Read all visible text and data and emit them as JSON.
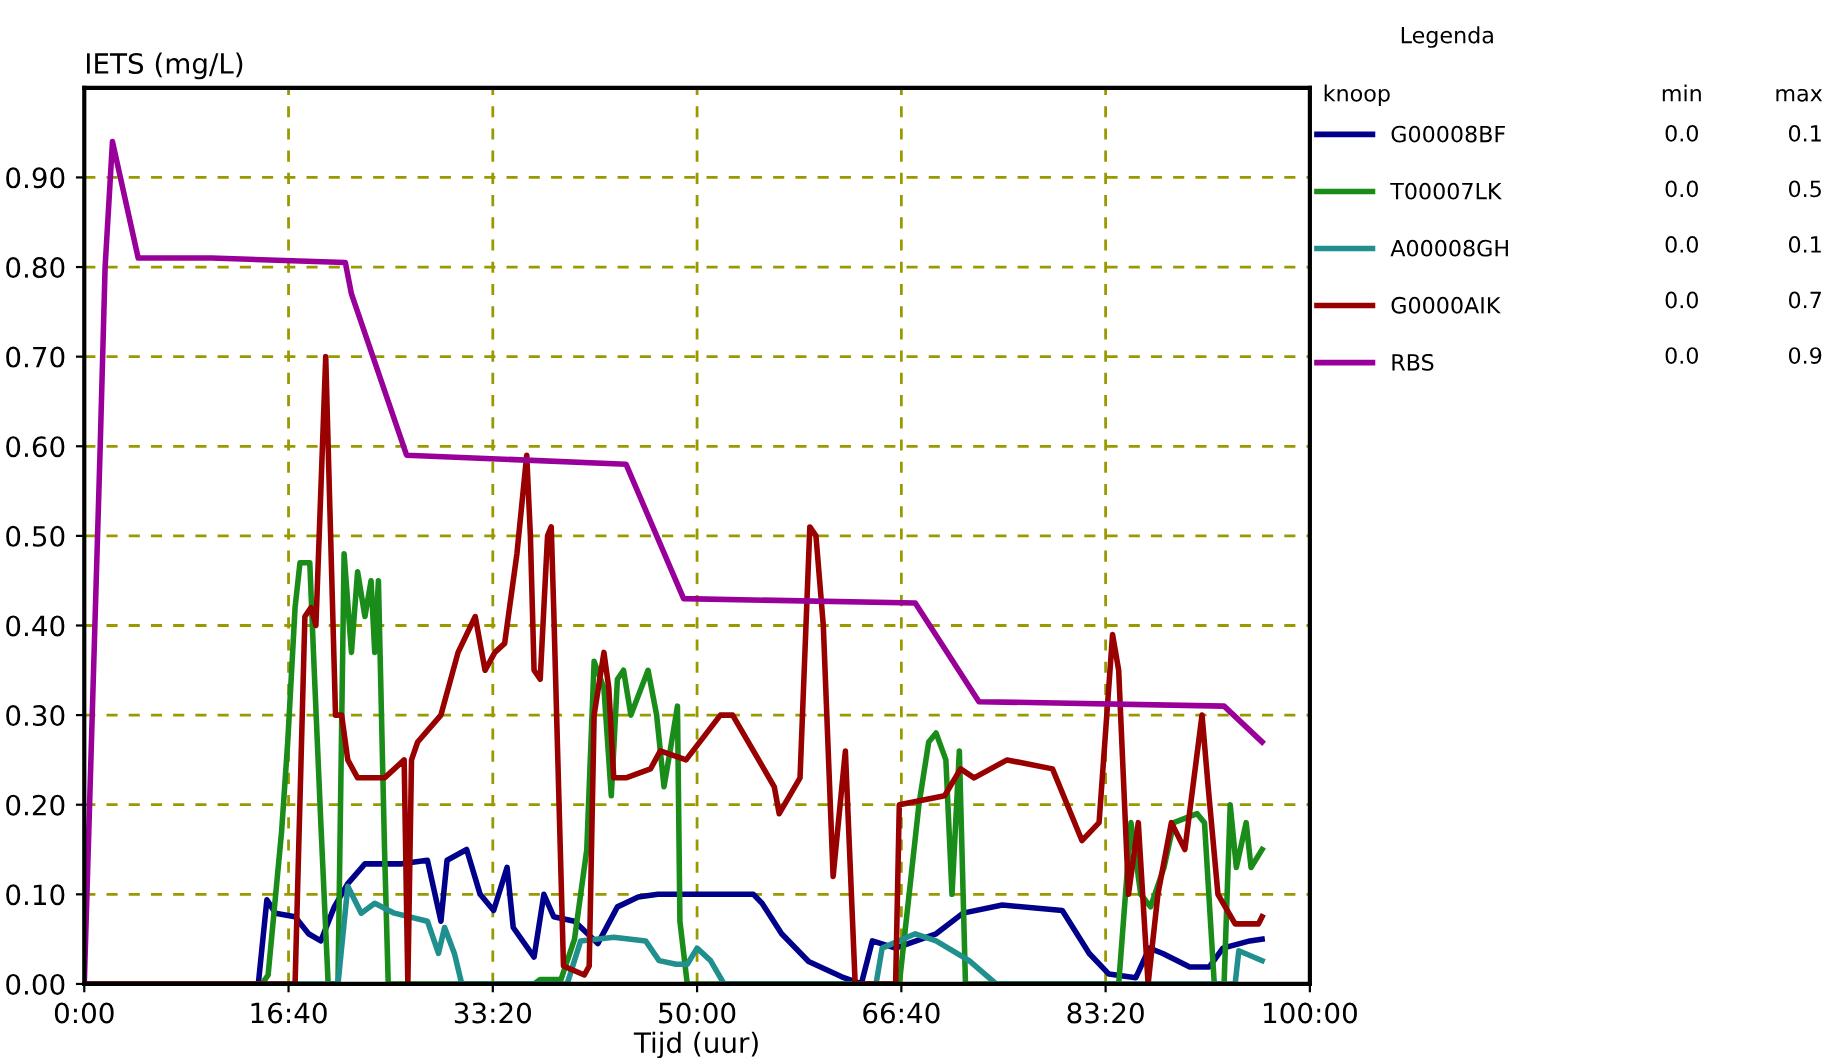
{
  "chart_data": {
    "type": "line",
    "ylabel": "IETS (mg/L)",
    "xlabel": "Tijd (uur)",
    "legend_title": "Legenda",
    "legend": "right",
    "grid": true,
    "line_style": "solid",
    "marker": "none",
    "xlim": [
      0,
      100
    ],
    "xticks": [
      {
        "value": 0,
        "label": "0:00"
      },
      {
        "value": 16.667,
        "label": "16:40"
      },
      {
        "value": 33.333,
        "label": "33:20"
      },
      {
        "value": 50,
        "label": "50:00"
      },
      {
        "value": 66.667,
        "label": "66:40"
      },
      {
        "value": 83.333,
        "label": "83:20"
      },
      {
        "value": 100,
        "label": "100:00"
      }
    ],
    "ylim": [
      0,
      1.0
    ],
    "yticks": [
      {
        "value": 0,
        "label": "0.00"
      },
      {
        "value": 0.1,
        "label": "0.10"
      },
      {
        "value": 0.2,
        "label": "0.20"
      },
      {
        "value": 0.3,
        "label": "0.30"
      },
      {
        "value": 0.4,
        "label": "0.40"
      },
      {
        "value": 0.5,
        "label": "0.50"
      },
      {
        "value": 0.6,
        "label": "0.60"
      },
      {
        "value": 0.7,
        "label": "0.70"
      },
      {
        "value": 0.8,
        "label": "0.80"
      },
      {
        "value": 0.9,
        "label": "0.90"
      }
    ],
    "annotations": [
      "knoop",
      "min",
      "max",
      "0.0",
      "0.1",
      "0.0",
      "0.5",
      "0.0",
      "0.1",
      "0.0",
      "0.7",
      "0.0",
      "0.9"
    ],
    "series": [
      {
        "name": "G00008BF",
        "color": "#00008b",
        "x": [
          0,
          14.2,
          14.9,
          15.6,
          17.2,
          18.3,
          19.3,
          20.4,
          21.5,
          22.9,
          25.9,
          28,
          29.1,
          29.6,
          31.2,
          32.3,
          33.4,
          34.5,
          35,
          36.7,
          37.5,
          38.3,
          40,
          41.9,
          43.5,
          45.2,
          46.8,
          54.6,
          55.3,
          56.9,
          59.1,
          61.8,
          63.4,
          64.3,
          66.2,
          69.5,
          71.7,
          74.9,
          79.8,
          82,
          83.6,
          85.8,
          86.9,
          88,
          90.2,
          91.8,
          92.9,
          95.1,
          96.1
        ],
        "values": [
          0,
          0,
          0.094,
          0.079,
          0.075,
          0.056,
          0.048,
          0.086,
          0.112,
          0.134,
          0.134,
          0.138,
          0.07,
          0.138,
          0.15,
          0.1,
          0.082,
          0.13,
          0.063,
          0.03,
          0.1,
          0.075,
          0.07,
          0.045,
          0.086,
          0.097,
          0.1,
          0.1,
          0.09,
          0.056,
          0.025,
          0.008,
          0,
          0.048,
          0.04,
          0.056,
          0.079,
          0.088,
          0.082,
          0.034,
          0.011,
          0.007,
          0.04,
          0.034,
          0.019,
          0.019,
          0.04,
          0.048,
          0.05
        ]
      },
      {
        "name": "T00007LK",
        "color": "#1a8c1a",
        "x": [
          0,
          14.5,
          15,
          16.1,
          16.6,
          17.2,
          17.6,
          18.4,
          18.7,
          19.3,
          19.9,
          20.7,
          21.2,
          21.8,
          22.3,
          22.9,
          23.4,
          23.7,
          24,
          24.5,
          24.8,
          36.7,
          37.2,
          38.9,
          40,
          41,
          41.6,
          42.4,
          43,
          43.5,
          44,
          44.6,
          46,
          46.7,
          47.3,
          47.8,
          48.4,
          48.6,
          49.2,
          66.5,
          68.1,
          68.9,
          69.5,
          70.3,
          70.8,
          71.4,
          71.9,
          84.4,
          85.4,
          86.2,
          87,
          88.1,
          88.9,
          90.8,
          91.4,
          92.2,
          93,
          93.5,
          94,
          94.8,
          95.2,
          96.1
        ],
        "values": [
          0,
          0,
          0.01,
          0.17,
          0.27,
          0.42,
          0.47,
          0.47,
          0.37,
          0.18,
          0,
          0,
          0.48,
          0.37,
          0.46,
          0.41,
          0.45,
          0.37,
          0.45,
          0.15,
          0,
          0,
          0.005,
          0.005,
          0.05,
          0.15,
          0.36,
          0.33,
          0.21,
          0.34,
          0.35,
          0.3,
          0.35,
          0.3,
          0.22,
          0.26,
          0.31,
          0.07,
          0,
          0,
          0.2,
          0.27,
          0.28,
          0.25,
          0.1,
          0.26,
          0,
          0,
          0.18,
          0.1,
          0.086,
          0.13,
          0.18,
          0.19,
          0.18,
          0,
          0,
          0.2,
          0.13,
          0.18,
          0.13,
          0.15
        ]
      },
      {
        "name": "A00008GH",
        "color": "#20908f",
        "x": [
          0,
          20.7,
          21.5,
          22.6,
          23.7,
          25.3,
          28,
          28.9,
          29.4,
          30.2,
          30.8,
          39.4,
          40.5,
          43.2,
          45.8,
          46.9,
          48.3,
          49.2,
          50,
          51.1,
          52.2,
          64.6,
          65.1,
          67.8,
          69.5,
          72.2,
          74.4,
          93.9,
          94.2,
          96.1
        ],
        "values": [
          0,
          0,
          0.109,
          0.079,
          0.09,
          0.079,
          0.07,
          0.034,
          0.063,
          0.034,
          0,
          0,
          0.048,
          0.052,
          0.048,
          0.026,
          0.022,
          0.022,
          0.04,
          0.026,
          0,
          0,
          0.04,
          0.056,
          0.048,
          0.026,
          0,
          0,
          0.037,
          0.026
        ]
      },
      {
        "name": "G0000AIK",
        "color": "#990000",
        "x": [
          0,
          17.2,
          18,
          18.5,
          18.9,
          19.7,
          20.5,
          21,
          21.5,
          22.3,
          24.5,
          26.1,
          26.4,
          26.7,
          27.2,
          29.1,
          30.5,
          31.9,
          32.7,
          33.5,
          34.3,
          35.3,
          36.1,
          36.4,
          36.7,
          37.2,
          37.8,
          38.1,
          38.3,
          39.1,
          40.8,
          41.2,
          41.6,
          42.4,
          42.8,
          43.2,
          44.2,
          46.2,
          47,
          49.1,
          51.9,
          52.9,
          56.3,
          56.7,
          58.4,
          59.2,
          59.7,
          60.3,
          61.1,
          62.1,
          62.9,
          66.2,
          66.5,
          70.2,
          71.5,
          72.6,
          75.3,
          79,
          81.4,
          82.8,
          83.9,
          84.4,
          85.2,
          86,
          86.8,
          87.6,
          88.7,
          89.8,
          91.2,
          91.7,
          92.5,
          93.9,
          95.8,
          96.1
        ],
        "values": [
          0,
          0,
          0.41,
          0.42,
          0.4,
          0.7,
          0.3,
          0.3,
          0.25,
          0.23,
          0.23,
          0.25,
          0,
          0.25,
          0.27,
          0.3,
          0.37,
          0.41,
          0.35,
          0.37,
          0.38,
          0.48,
          0.59,
          0.5,
          0.35,
          0.34,
          0.5,
          0.51,
          0.42,
          0.02,
          0.01,
          0.02,
          0.3,
          0.37,
          0.33,
          0.23,
          0.23,
          0.24,
          0.26,
          0.25,
          0.3,
          0.3,
          0.22,
          0.19,
          0.23,
          0.51,
          0.5,
          0.4,
          0.12,
          0.26,
          0,
          0,
          0.2,
          0.21,
          0.24,
          0.23,
          0.25,
          0.24,
          0.16,
          0.18,
          0.39,
          0.35,
          0.1,
          0.18,
          0,
          0.1,
          0.18,
          0.15,
          0.3,
          0.22,
          0.1,
          0.067,
          0.067,
          0.075
        ]
      },
      {
        "name": "RBS",
        "color": "#990099",
        "x": [
          0,
          1.3,
          1.7,
          2.3,
          4.4,
          10.4,
          21.3,
          21.8,
          26.3,
          44.2,
          48.9,
          67.8,
          73,
          93,
          96.1
        ],
        "values": [
          0,
          0.6,
          0.8,
          0.94,
          0.81,
          0.81,
          0.805,
          0.77,
          0.59,
          0.58,
          0.43,
          0.425,
          0.315,
          0.31,
          0.27
        ]
      }
    ]
  }
}
